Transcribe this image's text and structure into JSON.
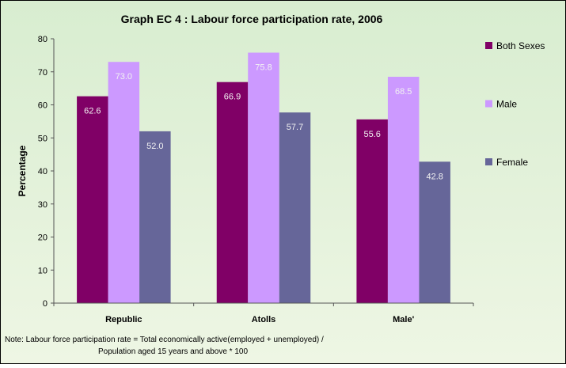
{
  "chart_data": {
    "type": "bar",
    "title": "Graph EC 4 : Labour force participation rate, 2006",
    "y_label": "Percentage",
    "note": [
      "Note: Labour force participation rate  = Total economically active(employed + unemployed) /",
      "Population aged 15 years and above * 100"
    ],
    "categories": [
      "Republic",
      "Atolls",
      "Male'"
    ],
    "series": [
      {
        "name": "Both Sexes",
        "color": "#800066",
        "values": [
          62.6,
          66.9,
          55.6
        ],
        "value_labels": [
          "62.6",
          "66.9",
          "55.6"
        ]
      },
      {
        "name": "Male",
        "color": "#cc99ff",
        "values": [
          73,
          75.8,
          68.5
        ],
        "value_labels": [
          "73.0",
          "75.8",
          "68.5"
        ]
      },
      {
        "name": "Female",
        "color": "#666699",
        "values": [
          52,
          57.7,
          42.8
        ],
        "value_labels": [
          "52.0",
          "57.7",
          "42.8"
        ]
      }
    ],
    "ylim": [
      0,
      80
    ],
    "yticks": [
      0,
      10,
      20,
      30,
      40,
      50,
      60,
      70,
      80
    ],
    "legend": "right",
    "grid": false
  }
}
